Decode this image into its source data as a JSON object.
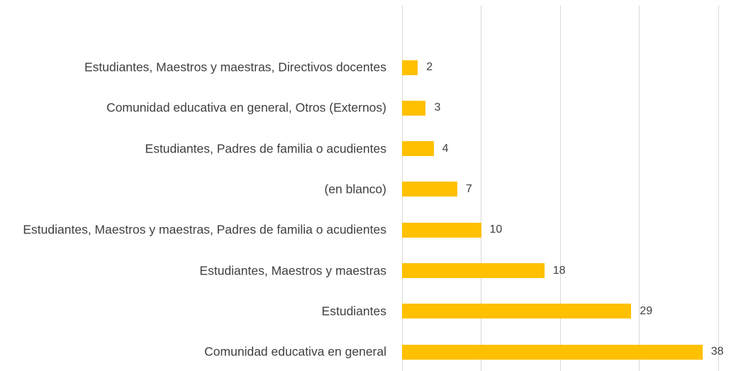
{
  "chart_data": {
    "type": "bar",
    "orientation": "horizontal",
    "categories": [
      "Estudiantes, Maestros y maestras, Directivos docentes",
      "Comunidad educativa en general, Otros (Externos)",
      "Estudiantes, Padres de familia o acudientes",
      "(en blanco)",
      "Estudiantes, Maestros y maestras, Padres de familia o acudientes",
      "Estudiantes, Maestros y maestras",
      "Estudiantes",
      "Comunidad educativa en general"
    ],
    "values": [
      2,
      3,
      4,
      7,
      10,
      18,
      29,
      38
    ],
    "color": "#ffc000",
    "xlim": [
      0,
      40
    ],
    "xticks": [
      0,
      10,
      20,
      30,
      40
    ],
    "grid": true,
    "data_labels": true
  }
}
